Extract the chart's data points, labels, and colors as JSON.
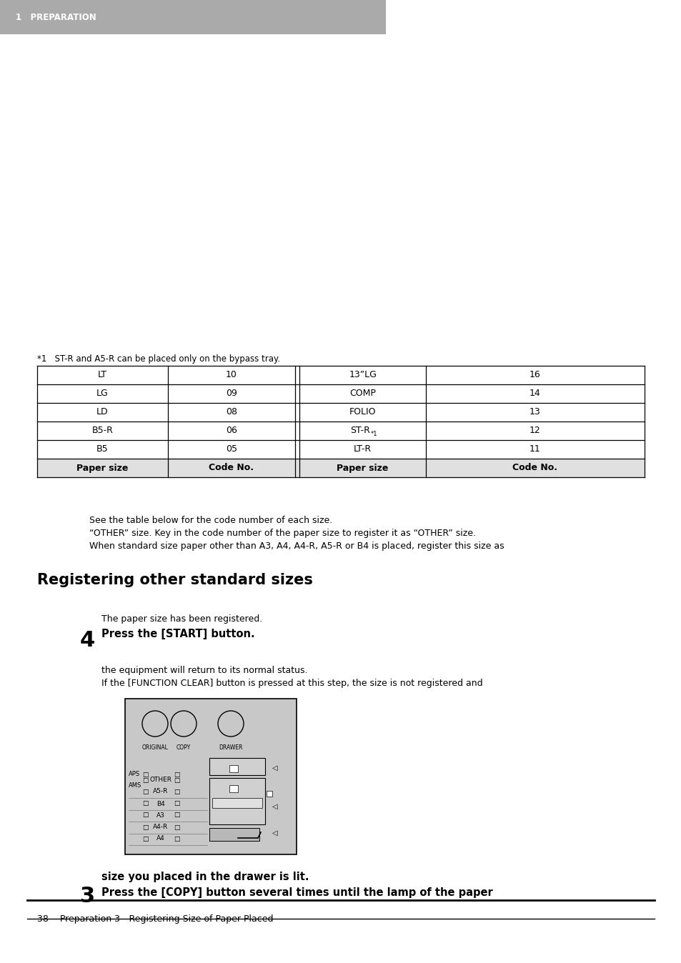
{
  "bg_color": "#ffffff",
  "header_bg": "#aaaaaa",
  "header_text": "1   PREPARATION",
  "header_text_color": "#ffffff",
  "step3_number": "3",
  "step3_line1": "Press the [COPY] button several times until the lamp of the paper",
  "step3_line2": "size you placed in the drawer is lit.",
  "step3_note1": "If the [FUNCTION CLEAR] button is pressed at this step, the size is not registered and",
  "step3_note2": "the equipment will return to its normal status.",
  "step4_number": "4",
  "step4_text_bold": "Press the [START] button.",
  "step4_sub": "The paper size has been registered.",
  "section_title": "Registering other standard sizes",
  "section_body1": "When standard size paper other than A3, A4, A4-R, A5-R or B4 is placed, register this size as",
  "section_body2": "“OTHER” size. Key in the code number of the paper size to register it as “OTHER” size.",
  "section_body3": "See the table below for the code number of each size.",
  "table_headers": [
    "Paper size",
    "Code No.",
    "Paper size",
    "Code No."
  ],
  "table_rows": [
    [
      "B5",
      "05",
      "LT-R",
      "11"
    ],
    [
      "B5-R",
      "06",
      "ST-R*1",
      "12"
    ],
    [
      "LD",
      "08",
      "FOLIO",
      "13"
    ],
    [
      "LG",
      "09",
      "COMP",
      "14"
    ],
    [
      "LT",
      "10",
      "13”LG",
      "16"
    ]
  ],
  "footnote": "*1   ST-R and A5-R can be placed only on the bypass tray.",
  "footer_text": "38    Preparation 3 - Registering Size of Paper Placed",
  "panel_labels": [
    "A4",
    "A4-R",
    "A3",
    "B4",
    "A5-R",
    "OTHER"
  ],
  "panel_ams": "AMS",
  "panel_aps": "APS",
  "panel_bottom_labels": [
    "ORIGINAL",
    "COPY",
    "DRAWER"
  ]
}
